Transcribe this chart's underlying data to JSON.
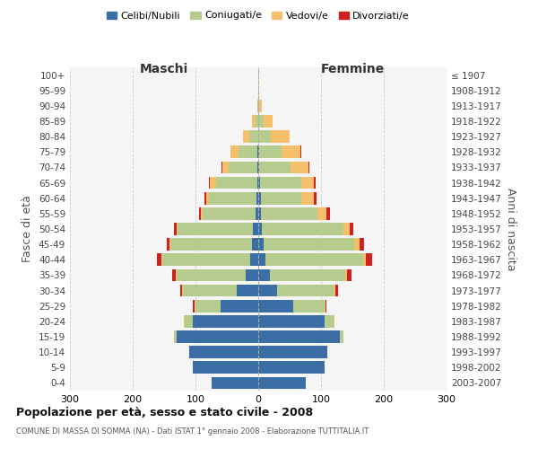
{
  "age_groups": [
    "0-4",
    "5-9",
    "10-14",
    "15-19",
    "20-24",
    "25-29",
    "30-34",
    "35-39",
    "40-44",
    "45-49",
    "50-54",
    "55-59",
    "60-64",
    "65-69",
    "70-74",
    "75-79",
    "80-84",
    "85-89",
    "90-94",
    "95-99",
    "100+"
  ],
  "birth_years": [
    "2003-2007",
    "1998-2002",
    "1993-1997",
    "1988-1992",
    "1983-1987",
    "1978-1982",
    "1973-1977",
    "1968-1972",
    "1963-1967",
    "1958-1962",
    "1953-1957",
    "1948-1952",
    "1943-1947",
    "1938-1942",
    "1933-1937",
    "1928-1932",
    "1923-1927",
    "1918-1922",
    "1913-1917",
    "1908-1912",
    "≤ 1907"
  ],
  "males": {
    "celibe": [
      75,
      105,
      110,
      130,
      105,
      60,
      35,
      20,
      13,
      10,
      8,
      4,
      3,
      2,
      2,
      2,
      0,
      0,
      0,
      0,
      0
    ],
    "coniugato": [
      0,
      0,
      0,
      5,
      12,
      40,
      85,
      110,
      140,
      130,
      120,
      85,
      75,
      65,
      45,
      30,
      15,
      5,
      2,
      0,
      0
    ],
    "vedovo": [
      0,
      0,
      0,
      0,
      1,
      2,
      2,
      2,
      2,
      2,
      2,
      3,
      5,
      10,
      10,
      12,
      10,
      5,
      0,
      0,
      0
    ],
    "divorziato": [
      0,
      0,
      0,
      0,
      1,
      2,
      3,
      5,
      7,
      4,
      4,
      3,
      3,
      2,
      2,
      0,
      0,
      0,
      0,
      0,
      0
    ]
  },
  "females": {
    "nubile": [
      75,
      105,
      110,
      130,
      105,
      55,
      30,
      18,
      12,
      8,
      5,
      4,
      4,
      3,
      2,
      2,
      0,
      0,
      0,
      0,
      0
    ],
    "coniugata": [
      0,
      0,
      0,
      5,
      15,
      50,
      90,
      120,
      155,
      145,
      130,
      90,
      65,
      65,
      50,
      35,
      20,
      8,
      2,
      0,
      0
    ],
    "vedova": [
      0,
      0,
      0,
      0,
      1,
      2,
      3,
      4,
      5,
      8,
      10,
      15,
      20,
      20,
      28,
      30,
      30,
      15,
      3,
      1,
      1
    ],
    "divorziata": [
      0,
      0,
      0,
      0,
      1,
      2,
      4,
      7,
      9,
      8,
      7,
      5,
      4,
      3,
      2,
      2,
      0,
      0,
      0,
      0,
      0
    ]
  },
  "colors": {
    "celibe": "#3A6EA5",
    "coniugato": "#B5CC8E",
    "vedovo": "#F5C06C",
    "divorziato": "#CC2222"
  },
  "xlim": 300,
  "title": "Popolazione per età, sesso e stato civile - 2008",
  "subtitle": "COMUNE DI MASSA DI SOMMA (NA) - Dati ISTAT 1° gennaio 2008 - Elaborazione TUTTITALIA.IT",
  "ylabel_left": "Fasce di età",
  "ylabel_right": "Anni di nascita",
  "legend_labels": [
    "Celibi/Nubili",
    "Coniugati/e",
    "Vedovi/e",
    "Divorziati/e"
  ]
}
